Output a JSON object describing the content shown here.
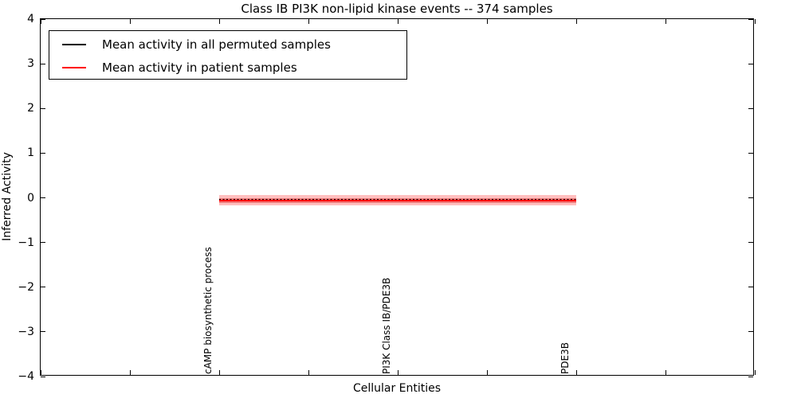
{
  "chart_data": {
    "type": "line",
    "title": "Class IB PI3K non-lipid kinase events -- 374 samples",
    "xlabel": "Cellular Entities",
    "ylabel": "Inferred Activity",
    "ylim": [
      -4,
      4
    ],
    "yticks": [
      4,
      3,
      2,
      1,
      0,
      -1,
      -2,
      -3,
      -4
    ],
    "x_axis": {
      "tick_count": 9,
      "entity_tick_indices": [
        2,
        4,
        6
      ]
    },
    "categories": [
      "cAMP biosynthetic process",
      "PI3K Class IB/PDE3B",
      "PDE3B"
    ],
    "series": [
      {
        "name": "Mean activity in all permuted samples",
        "color": "#000000",
        "line_style": "dashed",
        "values": [
          -0.04,
          -0.04,
          -0.04
        ]
      },
      {
        "name": "Mean activity in patient samples",
        "color": "#ff0000",
        "line_style": "solid",
        "values": [
          -0.055,
          -0.055,
          -0.055
        ]
      }
    ],
    "band": {
      "center": -0.055,
      "inner_halfwidth": 0.055,
      "outer_halfwidth": 0.115,
      "inner_color": "rgba(220,40,40,0.45)",
      "outer_color": "rgba(255,0,0,0.25)"
    },
    "legend": {
      "position": "upper-left"
    },
    "grid": false
  }
}
